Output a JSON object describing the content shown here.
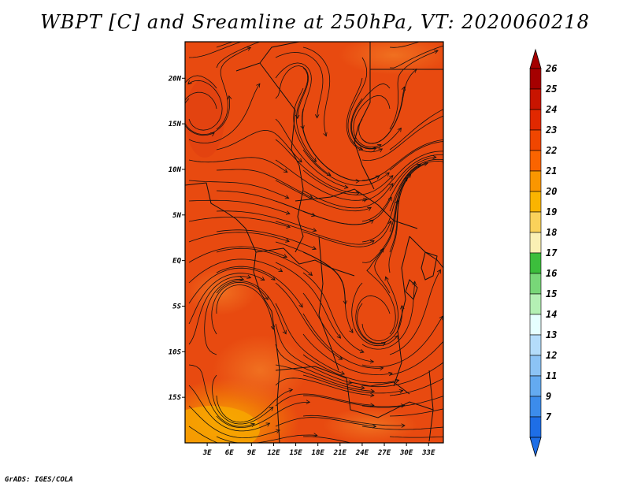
{
  "title": "WBPT [C] and Sreamline at 250hPa, VT: 2020060218",
  "credit": "GrADS: IGES/COLA",
  "map": {
    "variable": "Wet-bulb potential temperature",
    "level": "250hPa",
    "lon_range": [
      0,
      35
    ],
    "lat_range": [
      -20,
      24
    ],
    "lat_labels": [
      "20N",
      "15N",
      "10N",
      "5N",
      "EQ",
      "5S",
      "10S",
      "15S"
    ],
    "lat_values": [
      20,
      15,
      10,
      5,
      0,
      -5,
      -10,
      -15
    ],
    "lon_labels": [
      "3E",
      "6E",
      "9E",
      "12E",
      "15E",
      "18E",
      "21E",
      "24E",
      "27E",
      "30E",
      "33E"
    ],
    "lon_values": [
      3,
      6,
      9,
      12,
      15,
      18,
      21,
      24,
      27,
      30,
      33
    ]
  },
  "colorbar": {
    "labels": [
      "26",
      "25",
      "24",
      "23",
      "22",
      "21",
      "20",
      "19",
      "18",
      "17",
      "16",
      "15",
      "14",
      "13",
      "12",
      "11",
      "9",
      "7"
    ],
    "colors": [
      "#a50000",
      "#c81400",
      "#e12800",
      "#f04600",
      "#fa6400",
      "#fa9600",
      "#fab400",
      "#fad25a",
      "#faf0b4",
      "#3cbe3c",
      "#78d778",
      "#b4f0b4",
      "#e6ffff",
      "#b4dcfa",
      "#8cc3f5",
      "#64aaf0",
      "#3c8ceb",
      "#1e6ee6"
    ],
    "top_arrow_color": "#a50000",
    "bottom_arrow_color": "#1e6ee6"
  }
}
